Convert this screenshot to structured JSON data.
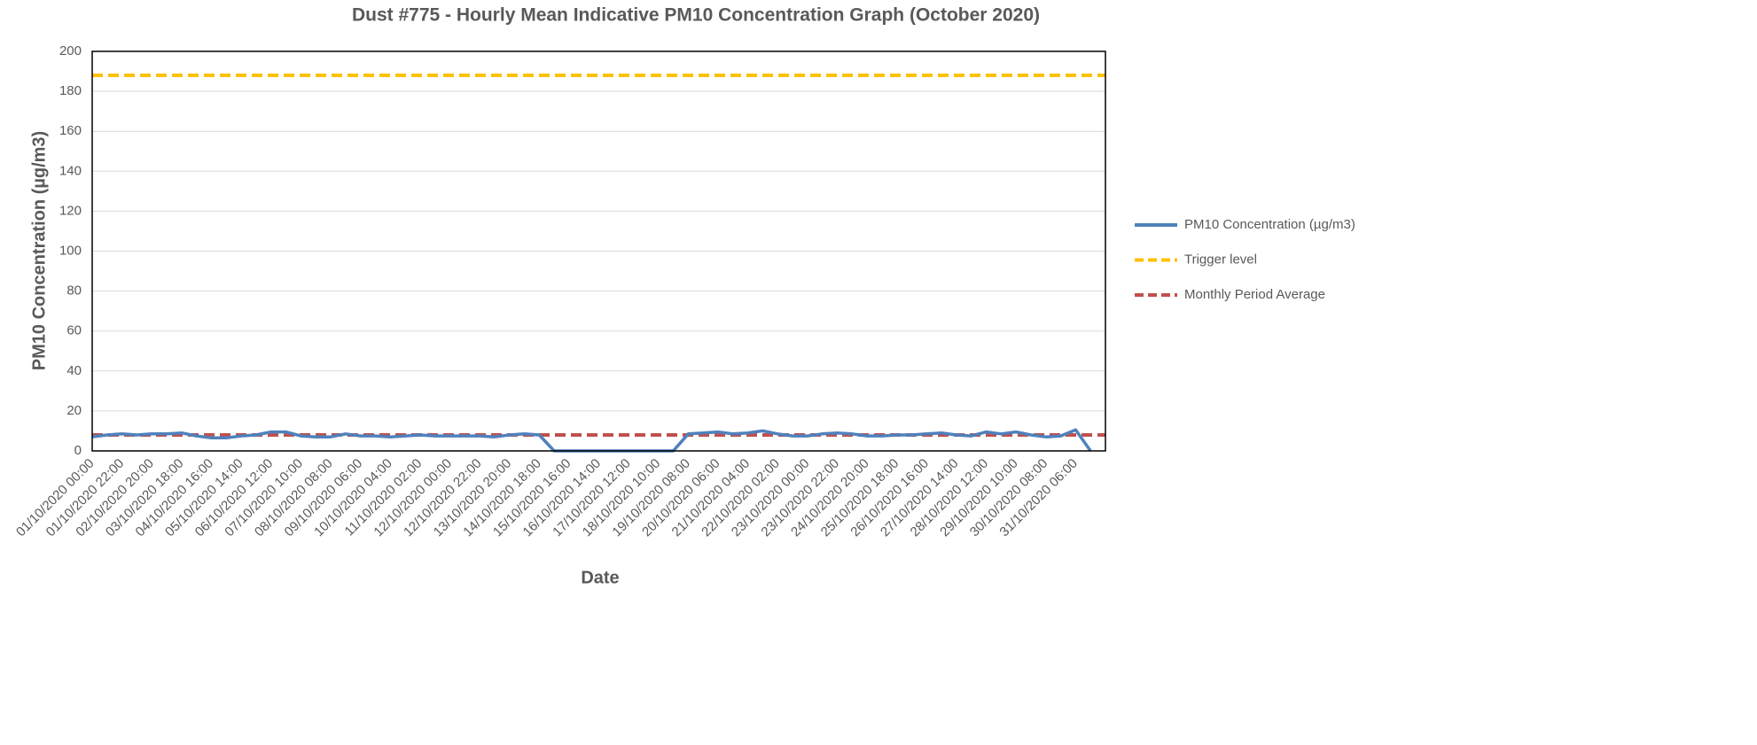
{
  "chart_data": {
    "type": "line",
    "title": "Dust #775 - Hourly Mean Indicative PM10 Concentration Graph (October 2020)",
    "x_label": "Date",
    "y_label": "PM10 Concentration (µg/m3)",
    "categories": [
      "01/10/2020 00:00",
      null,
      "01/10/2020 22:00",
      null,
      "02/10/2020 20:00",
      null,
      "03/10/2020 18:00",
      null,
      "04/10/2020 16:00",
      null,
      "05/10/2020 14:00",
      null,
      "06/10/2020 12:00",
      null,
      "07/10/2020 10:00",
      null,
      "08/10/2020 08:00",
      null,
      "09/10/2020 06:00",
      null,
      "10/10/2020 04:00",
      null,
      "11/10/2020 02:00",
      null,
      "12/10/2020 00:00",
      null,
      "12/10/2020 22:00",
      null,
      "13/10/2020 20:00",
      null,
      "14/10/2020 18:00",
      null,
      "15/10/2020 16:00",
      null,
      "16/10/2020 14:00",
      null,
      "17/10/2020 12:00",
      null,
      "18/10/2020 10:00",
      null,
      "19/10/2020 08:00",
      null,
      "20/10/2020 06:00",
      null,
      "21/10/2020 04:00",
      null,
      "22/10/2020 02:00",
      null,
      "23/10/2020 00:00",
      null,
      "23/10/2020 22:00",
      null,
      "24/10/2020 20:00",
      null,
      "25/10/2020 18:00",
      null,
      "26/10/2020 16:00",
      null,
      "27/10/2020 14:00",
      null,
      "28/10/2020 12:00",
      null,
      "29/10/2020 10:00",
      null,
      "30/10/2020 08:00",
      null,
      "31/10/2020 06:00",
      null
    ],
    "series": [
      {
        "name": "PM10 Concentration (µg/m3)",
        "color": "#4f81bd",
        "values": [
          7,
          8,
          8.5,
          8,
          8.5,
          8.5,
          9,
          7.5,
          6.5,
          6.5,
          7.5,
          8,
          9.5,
          9.5,
          7.5,
          7,
          7,
          8.5,
          7.5,
          7.5,
          7,
          7.5,
          8,
          7.5,
          7.5,
          7.5,
          7.5,
          7,
          8,
          8.5,
          8,
          0,
          0,
          0,
          0,
          0,
          0,
          0,
          0,
          0,
          8.5,
          9,
          9.5,
          8.5,
          9,
          10,
          8.5,
          7.5,
          7.5,
          8.5,
          9,
          8.5,
          7.5,
          7.5,
          8,
          8,
          8.5,
          9,
          8,
          7.5,
          9.5,
          8.5,
          9.5,
          8,
          7,
          7.5,
          10.5,
          0
        ]
      }
    ],
    "reference_lines": [
      {
        "name": "Trigger level",
        "value": 188,
        "color": "#ffc000"
      },
      {
        "name": "Monthly Period Average",
        "value": 8,
        "color": "#c0504d"
      }
    ],
    "ylim": [
      0,
      200
    ],
    "yticks": [
      0,
      20,
      40,
      60,
      80,
      100,
      120,
      140,
      160,
      180,
      200
    ],
    "grid": true,
    "legend": "right"
  }
}
